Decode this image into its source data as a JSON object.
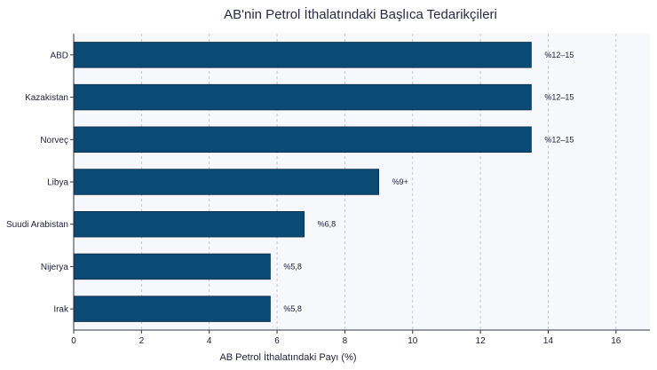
{
  "chart_data": {
    "type": "bar",
    "orientation": "horizontal",
    "title": "AB'nin Petrol İthalatındaki Başlıca Tedarikçileri",
    "xlabel": "AB Petrol İthalatındaki Payı (%)",
    "ylabel": "",
    "xlim": [
      0,
      17
    ],
    "x_ticks": [
      "0",
      "2",
      "4",
      "6",
      "8",
      "10",
      "12",
      "14",
      "16"
    ],
    "grid": "vertical dashed",
    "bar_color": "#0b4a74",
    "background_color": "#f6f8fb",
    "categories": [
      "ABD",
      "Kazakistan",
      "Norveç",
      "Libya",
      "Suudi Arabistan",
      "Nijerya",
      "Irak"
    ],
    "values": [
      13.5,
      13.5,
      13.5,
      9,
      6.8,
      5.8,
      5.8
    ],
    "data_labels": [
      "%12–15",
      "%12–15",
      "%12–15",
      "%9+",
      "%6,8",
      "%5,8",
      "%5,8"
    ]
  }
}
